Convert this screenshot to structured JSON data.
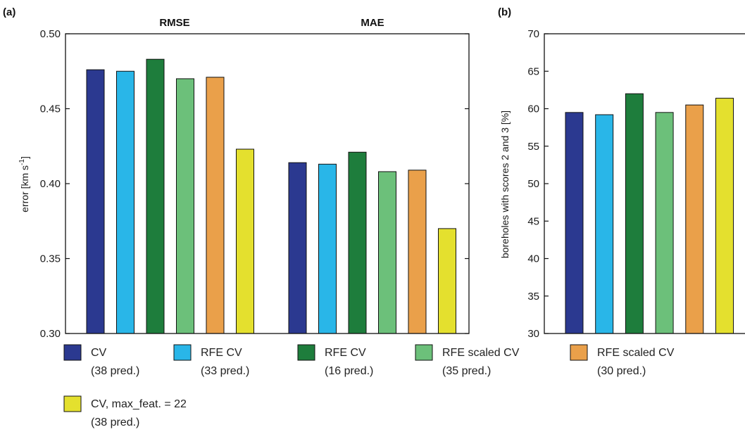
{
  "colors": [
    "#2b3990",
    "#29b6e8",
    "#1e7d3c",
    "#6cc07a",
    "#eaa04a",
    "#e4e02e"
  ],
  "legend": [
    {
      "line1": "CV",
      "line2": "(38 pred.)"
    },
    {
      "line1": "RFE CV",
      "line2": "(33 pred.)"
    },
    {
      "line1": "RFE CV",
      "line2": "(16 pred.)"
    },
    {
      "line1": "RFE scaled CV",
      "line2": "(35 pred.)"
    },
    {
      "line1": "RFE scaled CV",
      "line2": "(30 pred.)"
    },
    {
      "line1": "CV, max_feat. = 22",
      "line2": "(38 pred.)"
    }
  ],
  "chart_data": [
    {
      "type": "bar",
      "panel_label": "(a)",
      "ylabel": "error [km s-1]",
      "ylabel_main": "error [km s",
      "ylabel_sup": "-1",
      "ylabel_end": "]",
      "ylim": [
        0.3,
        0.5
      ],
      "yticks": [
        0.3,
        0.35,
        0.4,
        0.45,
        0.5
      ],
      "ytick_labels": [
        "0.30",
        "0.35",
        "0.40",
        "0.45",
        "0.50"
      ],
      "groups": [
        "RMSE",
        "MAE"
      ],
      "series": [
        {
          "values": [
            0.476,
            0.414
          ]
        },
        {
          "values": [
            0.475,
            0.413
          ]
        },
        {
          "values": [
            0.483,
            0.421
          ]
        },
        {
          "values": [
            0.47,
            0.408
          ]
        },
        {
          "values": [
            0.471,
            0.409
          ]
        },
        {
          "values": [
            0.423,
            0.37
          ]
        }
      ]
    },
    {
      "type": "bar",
      "panel_label": "(b)",
      "ylabel": "boreholes with scores 2 and 3 [%]",
      "ylim": [
        30,
        70
      ],
      "yticks": [
        30,
        35,
        40,
        45,
        50,
        55,
        60,
        65,
        70
      ],
      "ytick_labels": [
        "30",
        "35",
        "40",
        "45",
        "50",
        "55",
        "60",
        "65",
        "70"
      ],
      "series": [
        {
          "values": [
            59.5
          ]
        },
        {
          "values": [
            59.2
          ]
        },
        {
          "values": [
            62.0
          ]
        },
        {
          "values": [
            59.5
          ]
        },
        {
          "values": [
            60.5
          ]
        },
        {
          "values": [
            61.4
          ]
        }
      ]
    }
  ]
}
